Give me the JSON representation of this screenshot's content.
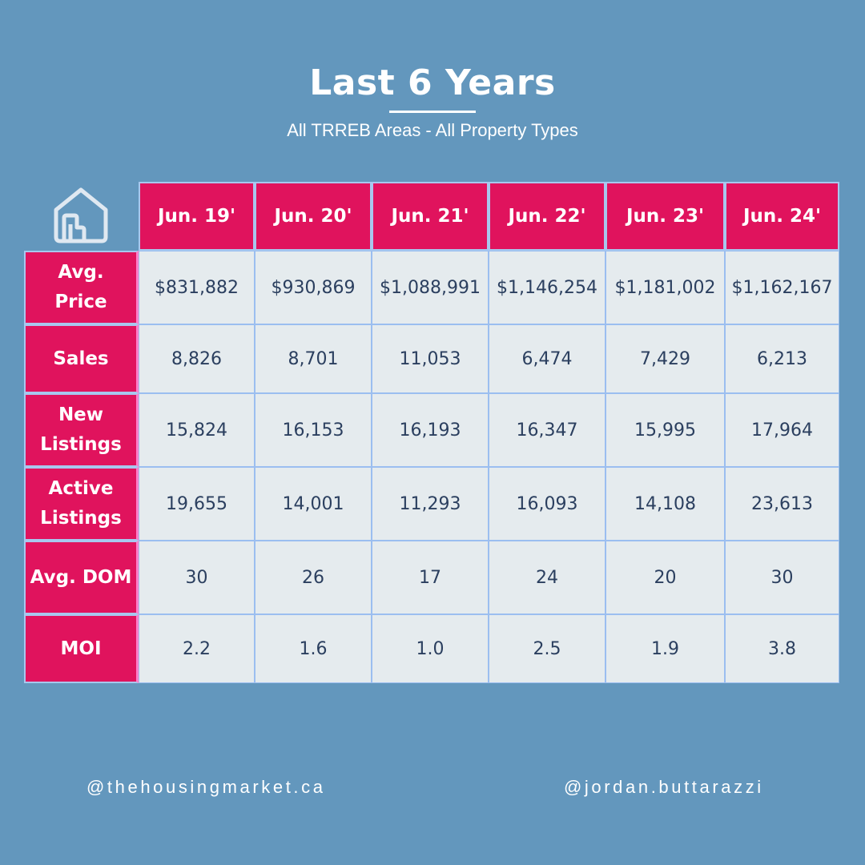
{
  "title": "Last 6 Years",
  "subtitle": "All TRREB Areas - All Property Types",
  "icons": {
    "corner": "house-icon"
  },
  "colors": {
    "background": "#6397bd",
    "header_fill": "#e0135d",
    "cell_fill": "#e5ebee",
    "cell_text": "#2b3f5f",
    "grid_line": "#a8c7ee"
  },
  "table": {
    "columns": [
      "Jun. 19'",
      "Jun. 20'",
      "Jun. 21'",
      "Jun. 22'",
      "Jun. 23'",
      "Jun. 24'"
    ],
    "rows": [
      {
        "label": "Avg. Price",
        "values": [
          "$831,882",
          "$930,869",
          "$1,088,991",
          "$1,146,254",
          "$1,181,002",
          "$1,162,167"
        ]
      },
      {
        "label": "Sales",
        "values": [
          "8,826",
          "8,701",
          "11,053",
          "6,474",
          "7,429",
          "6,213"
        ]
      },
      {
        "label": "New Listings",
        "values": [
          "15,824",
          "16,153",
          "16,193",
          "16,347",
          "15,995",
          "17,964"
        ]
      },
      {
        "label": "Active Listings",
        "values": [
          "19,655",
          "14,001",
          "11,293",
          "16,093",
          "14,108",
          "23,613"
        ]
      },
      {
        "label": "Avg. DOM",
        "values": [
          "30",
          "26",
          "17",
          "24",
          "20",
          "30"
        ]
      },
      {
        "label": "MOI",
        "values": [
          "2.2",
          "1.6",
          "1.0",
          "2.5",
          "1.9",
          "3.8"
        ]
      }
    ]
  },
  "footer": {
    "left": "@thehousingmarket.ca",
    "right": "@jordan.buttarazzi"
  }
}
